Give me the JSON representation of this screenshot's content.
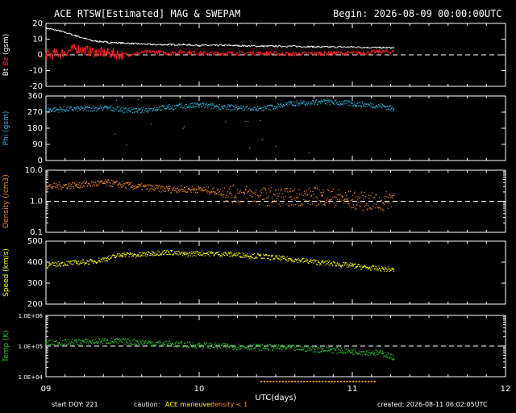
{
  "header": {
    "title": "ACE RTSW[Estimated] MAG & SWEPAM",
    "begin": "Begin: 2026-08-09 00:00:00UTC"
  },
  "footer": {
    "start_doy": "start DOY: 221",
    "caution": "caution:",
    "maneuver": "ACE maneuver",
    "density_lt": "density < 1",
    "created": "created: 2026-08-11 06:02:05UTC"
  },
  "colors": {
    "background": "#000000",
    "axes": "#ffffff",
    "bt": "#ffffff",
    "bz": "#ff2020",
    "phi": "#22b8e6",
    "density": "#ff8a1a",
    "speed": "#ffff00",
    "temp": "#22cc22",
    "maneuver": "#ff8a1a"
  },
  "x_axis": {
    "label": "UTC(days)",
    "range": [
      9,
      12
    ],
    "ticks": [
      "09",
      "10",
      "11",
      "12"
    ]
  },
  "chart_data": [
    {
      "type": "line",
      "panel": "mag",
      "ylabel": "Bt Bz (gsm)",
      "ylabel_parts": [
        {
          "text": "Bt",
          "color": "#ffffff"
        },
        {
          "text": "Bz",
          "color": "#ff2020"
        },
        {
          "text": "(gsm)",
          "color": "#ffffff"
        }
      ],
      "ylim": [
        -20,
        20
      ],
      "yticks": [
        "20",
        "10",
        "0",
        "-10",
        "-20"
      ],
      "ytick_values": [
        20,
        10,
        0,
        -10,
        -20
      ],
      "reference_line": 0,
      "series": [
        {
          "name": "Bt",
          "color": "#ffffff",
          "x": [
            9.0,
            9.1,
            9.2,
            9.3,
            9.4,
            9.5,
            9.6,
            9.7,
            9.8,
            9.9,
            10.0,
            10.2,
            10.4,
            10.6,
            10.8,
            11.0,
            11.2,
            11.27
          ],
          "y": [
            17,
            15,
            12,
            9,
            8,
            7.5,
            7,
            6.5,
            6.5,
            6.5,
            6,
            6,
            5.5,
            5.5,
            5,
            5,
            4.5,
            4.5
          ]
        },
        {
          "name": "Bz",
          "color": "#ff2020",
          "x": [
            9.0,
            9.1,
            9.2,
            9.3,
            9.4,
            9.5,
            9.6,
            9.7,
            9.8,
            9.9,
            10.0,
            10.2,
            10.4,
            10.6,
            10.8,
            11.0,
            11.2,
            11.27
          ],
          "y": [
            0,
            1,
            4,
            2,
            1,
            0,
            1,
            2,
            1,
            2,
            1,
            1,
            1,
            0.5,
            1,
            1,
            2,
            2
          ]
        }
      ]
    },
    {
      "type": "scatter",
      "panel": "phi",
      "ylabel": "Phi (gsm)",
      "ylim": [
        0,
        360
      ],
      "yticks": [
        "360",
        "270",
        "180",
        "90",
        "0"
      ],
      "ytick_values": [
        360,
        270,
        180,
        90,
        0
      ],
      "series": [
        {
          "name": "Phi",
          "color": "#22b8e6",
          "x": [
            9.0,
            9.2,
            9.4,
            9.6,
            9.8,
            10.0,
            10.2,
            10.4,
            10.6,
            10.8,
            11.0,
            11.2,
            11.27
          ],
          "y": [
            285,
            290,
            295,
            280,
            300,
            310,
            300,
            290,
            320,
            330,
            320,
            305,
            290
          ]
        }
      ]
    },
    {
      "type": "scatter",
      "panel": "density",
      "ylabel": "Density (/cm3)",
      "yscale": "log",
      "ylim": [
        0.1,
        10
      ],
      "yticks": [
        "10.0",
        "1.0",
        "0.1"
      ],
      "ytick_values": [
        10,
        1,
        0.1
      ],
      "reference_line": 1,
      "series": [
        {
          "name": "Density",
          "color": "#ff8a1a",
          "x": [
            9.0,
            9.2,
            9.4,
            9.6,
            9.8,
            10.0,
            10.2,
            10.4,
            10.6,
            10.8,
            11.0,
            11.2,
            11.27
          ],
          "y": [
            3.0,
            3.5,
            4.0,
            3.0,
            2.5,
            2.5,
            1.8,
            1.5,
            1.4,
            1.5,
            1.1,
            0.9,
            1.5
          ]
        }
      ]
    },
    {
      "type": "scatter",
      "panel": "speed",
      "ylabel": "Speed (km/s)",
      "ylim": [
        200,
        500
      ],
      "yticks": [
        "500",
        "400",
        "300",
        "200"
      ],
      "ytick_values": [
        500,
        400,
        300,
        200
      ],
      "series": [
        {
          "name": "Speed",
          "color": "#ffff00",
          "x": [
            9.0,
            9.1,
            9.2,
            9.3,
            9.4,
            9.5,
            9.6,
            9.7,
            9.8,
            9.9,
            10.0,
            10.2,
            10.4,
            10.6,
            10.8,
            11.0,
            11.1,
            11.2,
            11.27
          ],
          "y": [
            385,
            395,
            400,
            405,
            420,
            440,
            435,
            445,
            450,
            440,
            445,
            440,
            430,
            415,
            400,
            385,
            375,
            370,
            365
          ]
        }
      ]
    },
    {
      "type": "scatter",
      "panel": "temp",
      "ylabel": "Temp (K)",
      "yscale": "log",
      "ylim": [
        10000,
        1000000
      ],
      "yticks": [
        "1.0E+06",
        "1.0E+05",
        "1.0E+04"
      ],
      "ytick_values": [
        1000000,
        100000,
        10000
      ],
      "reference_line": 100000,
      "series": [
        {
          "name": "Temp",
          "color": "#22cc22",
          "x": [
            9.0,
            9.2,
            9.4,
            9.6,
            9.8,
            10.0,
            10.2,
            10.4,
            10.6,
            10.8,
            11.0,
            11.2,
            11.27
          ],
          "y": [
            130000,
            140000,
            150000,
            140000,
            120000,
            110000,
            100000,
            95000,
            90000,
            80000,
            70000,
            60000,
            40000
          ]
        }
      ]
    }
  ],
  "maneuver_span": [
    10.4,
    11.15
  ]
}
